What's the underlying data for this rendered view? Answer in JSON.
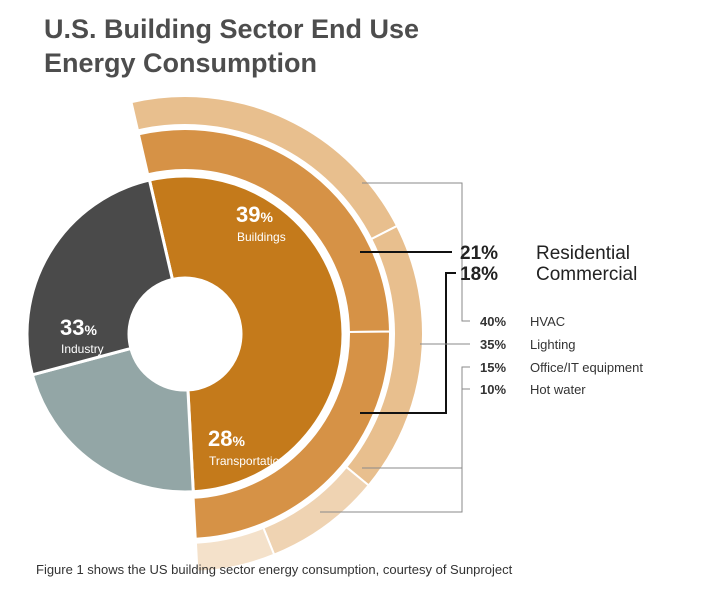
{
  "title": {
    "line1": "U.S. Building Sector End Use",
    "line2": "Energy Consumption"
  },
  "caption": "Figure 1 shows the US building sector energy consumption, courtesy of Sunproject",
  "chart_data": {
    "type": "pie",
    "inner": {
      "slices": [
        {
          "name": "Buildings",
          "value": 39,
          "label": "39",
          "unit": "%",
          "color": "#c47a1b"
        },
        {
          "name": "Transportation",
          "value": 28,
          "label": "28",
          "unit": "%",
          "color": "#93a6a6"
        },
        {
          "name": "Industry",
          "value": 33,
          "label": "33",
          "unit": "%",
          "color": "#4a4a4a"
        }
      ]
    },
    "middle": {
      "slices": [
        {
          "name": "Residential",
          "value": 21,
          "label": "21%",
          "color": "#d69246"
        },
        {
          "name": "Commercial",
          "value": 18,
          "label": "18%",
          "color": "#d69246"
        }
      ]
    },
    "outer": {
      "slices": [
        {
          "name": "HVAC",
          "value": 40,
          "label": "40%",
          "color": "#e8bf8e"
        },
        {
          "name": "Lighting",
          "value": 35,
          "label": "35%",
          "color": "#e8bf8e"
        },
        {
          "name": "Office/IT equipment",
          "value": 15,
          "label": "15%",
          "color": "#efd3b2"
        },
        {
          "name": "Hot water",
          "value": 10,
          "label": "10%",
          "color": "#f4e1ca"
        }
      ]
    },
    "background": "#ffffff"
  }
}
